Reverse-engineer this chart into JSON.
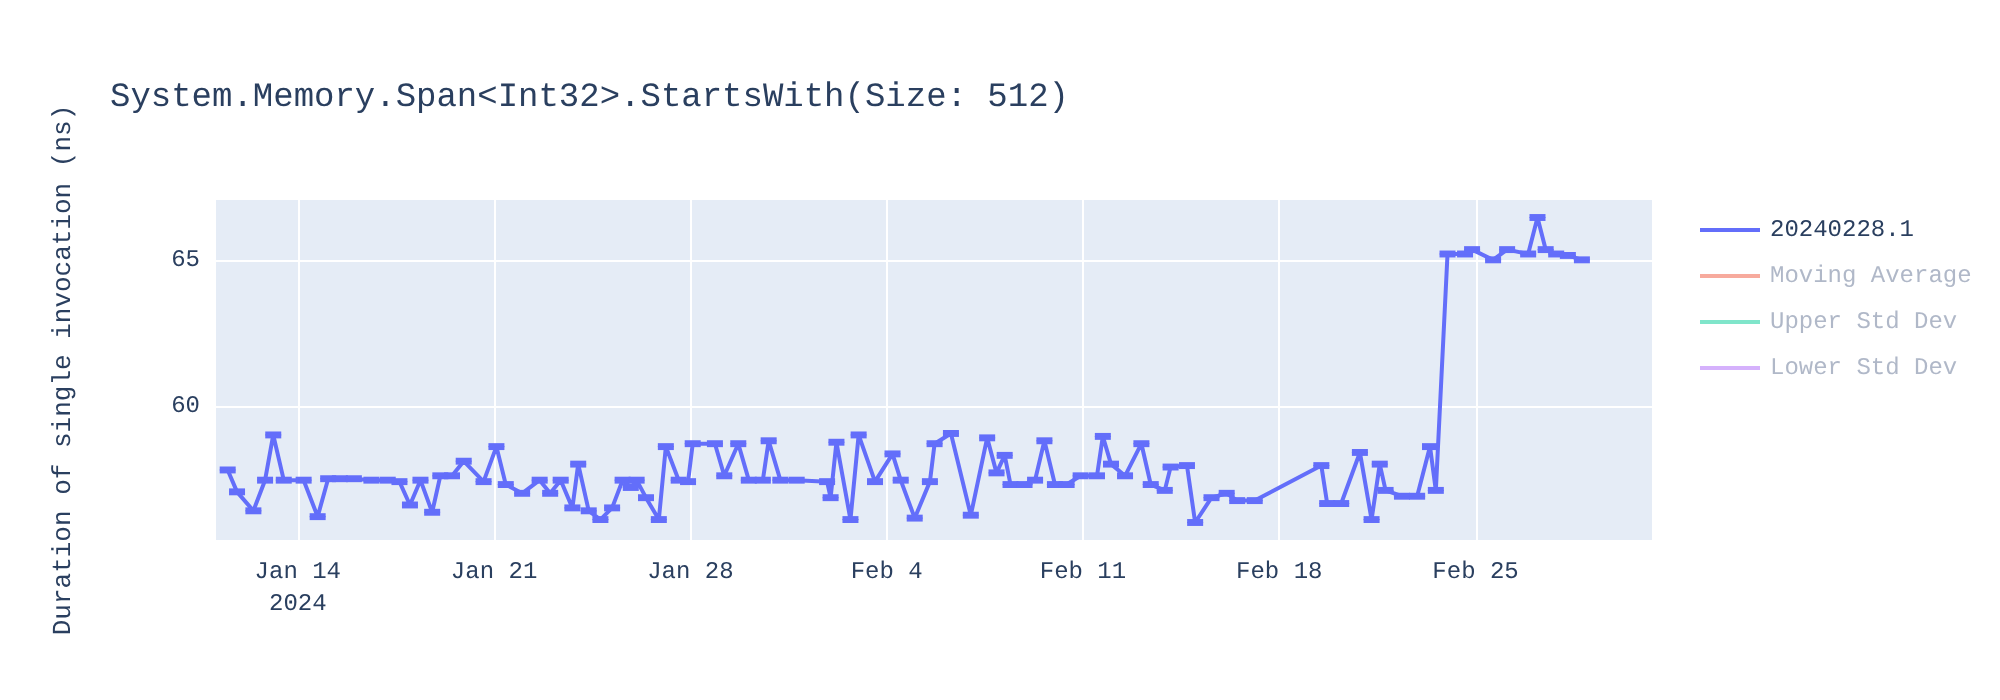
{
  "chart_data": {
    "type": "line",
    "title": "System.Memory.Span<Int32>.StartsWith(Size: 512)",
    "ylabel": "Duration of single invocation (ns)",
    "x": [
      "2024-01-11T12:00",
      "2024-01-11T20:00",
      "2024-01-12T10:00",
      "2024-01-12T20:00",
      "2024-01-13T03:00",
      "2024-01-13T12:00",
      "2024-01-14T05:00",
      "2024-01-14T17:00",
      "2024-01-15T02:00",
      "2024-01-15T12:00",
      "2024-01-16T00:00",
      "2024-01-16T15:00",
      "2024-01-17T05:00",
      "2024-01-17T15:00",
      "2024-01-18T00:00",
      "2024-01-18T09:00",
      "2024-01-18T19:00",
      "2024-01-19T02:00",
      "2024-01-19T12:00",
      "2024-01-19T22:00",
      "2024-01-20T15:00",
      "2024-01-21T02:00",
      "2024-01-21T10:00",
      "2024-01-22T00:00",
      "2024-01-22T15:00",
      "2024-01-23T00:00",
      "2024-01-23T09:00",
      "2024-01-23T19:00",
      "2024-01-24T00:00",
      "2024-01-24T09:00",
      "2024-01-24T19:00",
      "2024-01-25T05:00",
      "2024-01-25T14:00",
      "2024-01-25T21:00",
      "2024-01-26T02:00",
      "2024-01-26T10:00",
      "2024-01-26T21:00",
      "2024-01-27T03:00",
      "2024-01-27T14:00",
      "2024-01-27T22:00",
      "2024-01-28T02:00",
      "2024-01-28T21:00",
      "2024-01-29T05:00",
      "2024-01-29T17:00",
      "2024-01-30T02:00",
      "2024-01-30T14:00",
      "2024-01-30T19:00",
      "2024-01-31T05:00",
      "2024-01-31T19:00",
      "2024-02-01T21:00",
      "2024-02-02T00:00",
      "2024-02-02T05:00",
      "2024-02-02T17:00",
      "2024-02-03T00:00",
      "2024-02-03T14:00",
      "2024-02-04T05:00",
      "2024-02-04T12:00",
      "2024-02-05T00:00",
      "2024-02-05T13:00",
      "2024-02-05T17:00",
      "2024-02-06T07:00",
      "2024-02-07T00:00",
      "2024-02-07T14:00",
      "2024-02-07T22:00",
      "2024-02-08T05:00",
      "2024-02-08T10:00",
      "2024-02-08T22:00",
      "2024-02-09T07:00",
      "2024-02-09T15:00",
      "2024-02-10T00:00",
      "2024-02-10T10:00",
      "2024-02-10T22:00",
      "2024-02-11T12:00",
      "2024-02-11T17:00",
      "2024-02-12T00:00",
      "2024-02-12T12:00",
      "2024-02-13T02:00",
      "2024-02-13T10:00",
      "2024-02-13T22:00",
      "2024-02-14T03:00",
      "2024-02-14T17:00",
      "2024-02-15T00:00",
      "2024-02-15T14:00",
      "2024-02-16T03:00",
      "2024-02-16T12:00",
      "2024-02-17T03:00",
      "2024-02-19T12:00",
      "2024-02-19T17:00",
      "2024-02-20T05:00",
      "2024-02-20T21:00",
      "2024-02-21T07:00",
      "2024-02-21T14:00",
      "2024-02-21T19:00",
      "2024-02-22T09:00",
      "2024-02-22T22:00",
      "2024-02-23T09:00",
      "2024-02-23T14:00",
      "2024-02-24T00:00",
      "2024-02-24T15:00",
      "2024-02-24T21:00",
      "2024-02-25T15:00",
      "2024-02-26T03:00",
      "2024-02-26T21:00",
      "2024-02-27T05:00",
      "2024-02-27T12:00",
      "2024-02-27T21:00",
      "2024-02-28T07:00",
      "2024-02-28T19:00"
    ],
    "series": [
      {
        "name": "20240228.1",
        "color": "#636efa",
        "values": [
          57.8,
          57.05,
          56.4,
          57.45,
          59.0,
          57.45,
          57.45,
          56.2,
          57.5,
          57.5,
          57.5,
          57.45,
          57.45,
          57.4,
          56.6,
          57.45,
          56.35,
          57.6,
          57.6,
          58.1,
          57.4,
          58.6,
          57.3,
          57.0,
          57.45,
          57.0,
          57.45,
          56.5,
          58.0,
          56.4,
          56.1,
          56.5,
          57.45,
          57.2,
          57.45,
          56.85,
          56.1,
          58.6,
          57.45,
          57.4,
          58.7,
          58.7,
          57.6,
          58.7,
          57.45,
          57.45,
          58.8,
          57.45,
          57.45,
          57.4,
          56.85,
          58.75,
          56.1,
          59.0,
          57.4,
          58.35,
          57.45,
          56.15,
          57.4,
          58.7,
          59.05,
          56.25,
          58.9,
          57.7,
          58.3,
          57.3,
          57.3,
          57.45,
          58.8,
          57.3,
          57.3,
          57.6,
          57.6,
          58.95,
          58.0,
          57.6,
          58.7,
          57.3,
          57.1,
          57.9,
          57.95,
          56.0,
          56.85,
          57.0,
          56.75,
          56.75,
          57.95,
          56.65,
          56.65,
          58.4,
          56.1,
          58.0,
          57.1,
          56.9,
          56.9,
          58.6,
          57.1,
          65.2,
          65.2,
          65.35,
          65.0,
          65.35,
          65.2,
          66.45,
          65.35,
          65.2,
          65.15,
          65.0
        ],
        "errors": [
          0.05,
          0.05,
          0.05,
          0.05,
          0.05,
          0.05,
          0.05,
          0.05,
          0.05,
          0.05,
          0.05,
          0.05,
          0.05,
          0.05,
          0.05,
          0.05,
          0.05,
          0.05,
          0.05,
          0.05,
          0.05,
          0.05,
          0.05,
          0.05,
          0.05,
          0.05,
          0.05,
          0.05,
          0.05,
          0.05,
          0.05,
          0.05,
          0.05,
          0.05,
          0.05,
          0.05,
          0.05,
          0.05,
          0.05,
          0.05,
          0.05,
          0.05,
          0.05,
          0.05,
          0.05,
          0.05,
          0.05,
          0.05,
          0.05,
          0.05,
          0.05,
          0.05,
          0.05,
          0.05,
          0.05,
          0.05,
          0.05,
          0.05,
          0.05,
          0.05,
          0.05,
          0.05,
          0.05,
          0.05,
          0.05,
          0.05,
          0.05,
          0.05,
          0.05,
          0.05,
          0.05,
          0.05,
          0.05,
          0.05,
          0.05,
          0.05,
          0.05,
          0.05,
          0.05,
          0.05,
          0.05,
          0.05,
          0.05,
          0.05,
          0.05,
          0.05,
          0.05,
          0.05,
          0.05,
          0.05,
          0.05,
          0.05,
          0.05,
          0.05,
          0.05,
          0.05,
          0.05,
          0.05,
          0.05,
          0.05,
          0.05,
          0.05,
          0.05,
          0.05,
          0.05,
          0.05,
          0.05,
          0.05
        ]
      },
      {
        "name": "Moving Average",
        "color": "#ef553b",
        "values": [
          null,
          null,
          null,
          null,
          null,
          null,
          null,
          null,
          null,
          null,
          null,
          null,
          null,
          null,
          null,
          null,
          null,
          null,
          null,
          null,
          null,
          null,
          null,
          null,
          null,
          null,
          null,
          null,
          null,
          null,
          null,
          null,
          null,
          null,
          null,
          null,
          null,
          null,
          null,
          null,
          null,
          null,
          null,
          null,
          null,
          null,
          null,
          null,
          null,
          null,
          null,
          null,
          null,
          null,
          null,
          null,
          null,
          null,
          null,
          null,
          null,
          null,
          null,
          null,
          null,
          null,
          null,
          null,
          null,
          null,
          null,
          null,
          null,
          null,
          null,
          null,
          null,
          null,
          null,
          null,
          null,
          null,
          null,
          null,
          null,
          null,
          null,
          null,
          null,
          null,
          null,
          null,
          null,
          null,
          null,
          null,
          null,
          null,
          null,
          null,
          null,
          null,
          null,
          null,
          null,
          null,
          null,
          null
        ]
      },
      {
        "name": "Upper Std Dev",
        "color": "#00cc96",
        "values": [
          null,
          null,
          null,
          null,
          null,
          null,
          null,
          null,
          null,
          null,
          null,
          null,
          null,
          null,
          null,
          null,
          null,
          null,
          null,
          null,
          null,
          null,
          null,
          null,
          null,
          null,
          null,
          null,
          null,
          null,
          null,
          null,
          null,
          null,
          null,
          null,
          null,
          null,
          null,
          null,
          null,
          null,
          null,
          null,
          null,
          null,
          null,
          null,
          null,
          null,
          null,
          null,
          null,
          null,
          null,
          null,
          null,
          null,
          null,
          null,
          null,
          null,
          null,
          null,
          null,
          null,
          null,
          null,
          null,
          null,
          null,
          null,
          null,
          null,
          null,
          null,
          null,
          null,
          null,
          null,
          null,
          null,
          null,
          null,
          null,
          null,
          null,
          null,
          null,
          null,
          null,
          null,
          null,
          null,
          null,
          null,
          null,
          null,
          null,
          null,
          null,
          null,
          null,
          null,
          null,
          null,
          null,
          null
        ]
      },
      {
        "name": "Lower Std Dev",
        "color": "#ab63fa",
        "values": [
          null,
          null,
          null,
          null,
          null,
          null,
          null,
          null,
          null,
          null,
          null,
          null,
          null,
          null,
          null,
          null,
          null,
          null,
          null,
          null,
          null,
          null,
          null,
          null,
          null,
          null,
          null,
          null,
          null,
          null,
          null,
          null,
          null,
          null,
          null,
          null,
          null,
          null,
          null,
          null,
          null,
          null,
          null,
          null,
          null,
          null,
          null,
          null,
          null,
          null,
          null,
          null,
          null,
          null,
          null,
          null,
          null,
          null,
          null,
          null,
          null,
          null,
          null,
          null,
          null,
          null,
          null,
          null,
          null,
          null,
          null,
          null,
          null,
          null,
          null,
          null,
          null,
          null,
          null,
          null,
          null,
          null,
          null,
          null,
          null,
          null,
          null,
          null,
          null,
          null,
          null,
          null,
          null,
          null,
          null,
          null,
          null,
          null,
          null,
          null,
          null,
          null,
          null,
          null,
          null,
          null,
          null,
          null
        ]
      }
    ],
    "xlim": [
      "2024-01-11T02:00",
      "2024-03-02T07:00"
    ],
    "xticks": [
      {
        "value": "2024-01-14",
        "label": "Jan 14\n2024"
      },
      {
        "value": "2024-01-21",
        "label": "Jan 21"
      },
      {
        "value": "2024-01-28",
        "label": "Jan 28"
      },
      {
        "value": "2024-02-04",
        "label": "Feb 4"
      },
      {
        "value": "2024-02-11",
        "label": "Feb 11"
      },
      {
        "value": "2024-02-18",
        "label": "Feb 18"
      },
      {
        "value": "2024-02-25",
        "label": "Feb 25"
      }
    ],
    "ylim": [
      55.4,
      67.05
    ],
    "yticks": [
      60,
      65
    ],
    "grid": true,
    "legend": "top right",
    "marker": "none",
    "line_style": "solid"
  }
}
